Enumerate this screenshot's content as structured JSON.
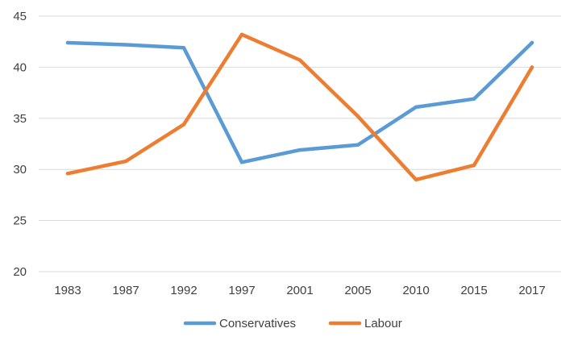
{
  "chart_data": {
    "type": "line",
    "title": "",
    "xlabel": "",
    "ylabel": "",
    "categories": [
      "1983",
      "1987",
      "1992",
      "1997",
      "2001",
      "2005",
      "2010",
      "2015",
      "2017"
    ],
    "ylim": [
      20,
      45
    ],
    "yticks": [
      20,
      25,
      30,
      35,
      40,
      45
    ],
    "grid": true,
    "legend_position": "bottom",
    "series": [
      {
        "name": "Conservatives",
        "color": "#5b9bd5",
        "values": [
          42.4,
          42.2,
          41.9,
          30.7,
          31.9,
          32.4,
          36.1,
          36.9,
          42.4
        ]
      },
      {
        "name": "Labour",
        "color": "#ed7d31",
        "values": [
          29.6,
          30.8,
          34.4,
          43.2,
          40.7,
          35.2,
          29.0,
          30.4,
          40.0
        ]
      }
    ]
  }
}
